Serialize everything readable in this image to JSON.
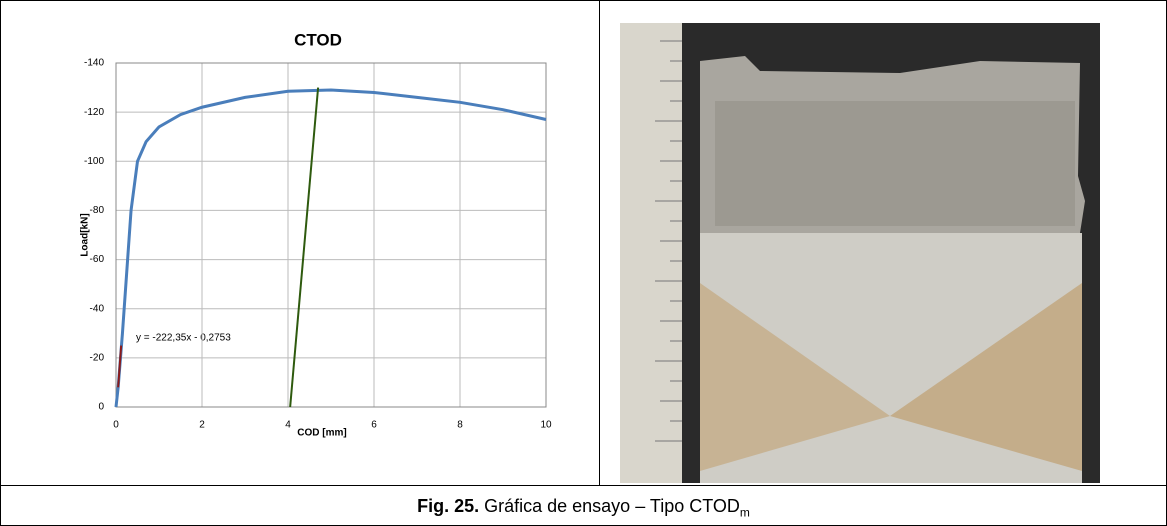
{
  "chart_data": {
    "type": "line",
    "title": "CTOD",
    "x_label": "COD [mm]",
    "y_label": "Load[kN]",
    "annotation": "y = -222,35x - 0,2753",
    "xlim": [
      0,
      10
    ],
    "xticks": [
      0,
      2,
      4,
      6,
      8,
      10
    ],
    "ylim": [
      0,
      -140
    ],
    "yticks": [
      0,
      -20,
      -40,
      -60,
      -80,
      -100,
      -120,
      -140
    ],
    "grid": true,
    "series": [
      {
        "color": "#4a7ebb",
        "x": [
          0,
          0.05,
          0.15,
          0.25,
          0.35,
          0.5,
          0.7,
          1,
          1.5,
          2,
          3,
          4,
          5,
          6,
          7,
          8,
          9,
          10
        ],
        "values": [
          0,
          -8,
          -30,
          -55,
          -80,
          -100,
          -108,
          -114,
          -119,
          -122,
          -126,
          -128.5,
          -129,
          -128,
          -126,
          -124,
          -121,
          -117
        ]
      },
      {
        "color": "#2e5a0e",
        "x": [
          4.05,
          4.7
        ],
        "values": [
          0,
          -130
        ]
      },
      {
        "color": "#8b1a1a",
        "x": [
          0.05,
          0.12
        ],
        "values": [
          -8,
          -25
        ]
      }
    ]
  },
  "caption": {
    "label": "Fig. 25.",
    "text": "Gráfica de ensayo – Tipo CTOD",
    "subscript": "m"
  }
}
